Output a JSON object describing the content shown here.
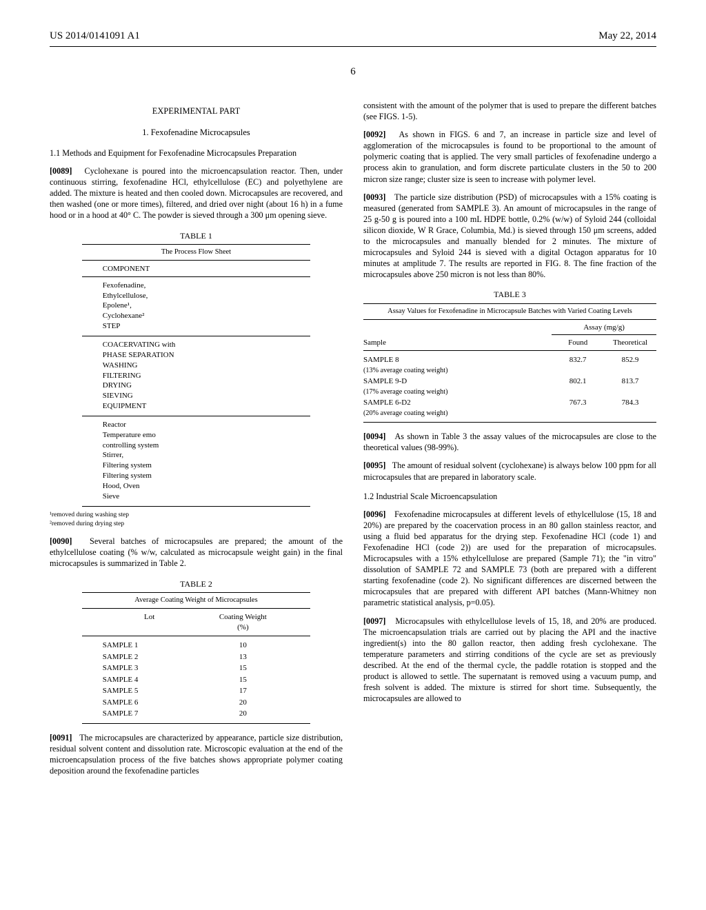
{
  "header": {
    "left": "US 2014/0141091 A1",
    "right": "May 22, 2014",
    "page_number": "6"
  },
  "left_col": {
    "experimental_heading": "EXPERIMENTAL PART",
    "sub_heading_1": "1. Fexofenadine Microcapsules",
    "sub_heading_1_1": "1.1 Methods and Equipment for Fexofenadine Microcapsules Preparation",
    "para_89_num": "[0089]",
    "para_89": "Cyclohexane is poured into the microencapsulation reactor. Then, under continuous stirring, fexofenadine HCl, ethylcellulose (EC) and polyethylene are added. The mixture is heated and then cooled down. Microcapsules are recovered, and then washed (one or more times), filtered, and dried over night (about 16 h) in a fume hood or in a hood at 40° C. The powder is sieved through a 300 μm opening sieve.",
    "table1_caption": "TABLE 1",
    "table1_title": "The Process Flow Sheet",
    "table1_component_label": "COMPONENT",
    "table1_components": "Fexofenadine,\nEthylcellulose,\nEpolene¹,\nCyclohexane²\nSTEP",
    "table1_steps": "COACERVATING with\nPHASE SEPARATION\nWASHING\nFILTERING\nDRYING\nSIEVING\nEQUIPMENT",
    "table1_equipment": "Reactor\nTemperature emo\ncontrolling system\nStirrer,\nFiltering system\nFiltering system\nHood, Oven\nSieve",
    "footnote_1": "¹removed during washing step",
    "footnote_2": "²removed during drying step",
    "para_90_num": "[0090]",
    "para_90": "Several batches of microcapsules are prepared; the amount of the ethylcellulose coating (% w/w, calculated as microcapsule weight gain) in the final microcapsules is summarized in Table 2.",
    "table2_caption": "TABLE 2",
    "table2_title": "Average Coating Weight of Microcapsules",
    "table2_h1": "Lot",
    "table2_h2": "Coating Weight\n(%)",
    "table2_rows": [
      {
        "lot": "SAMPLE 1",
        "cw": "10"
      },
      {
        "lot": "SAMPLE 2",
        "cw": "13"
      },
      {
        "lot": "SAMPLE 3",
        "cw": "15"
      },
      {
        "lot": "SAMPLE 4",
        "cw": "15"
      },
      {
        "lot": "SAMPLE 5",
        "cw": "17"
      },
      {
        "lot": "SAMPLE 6",
        "cw": "20"
      },
      {
        "lot": "SAMPLE 7",
        "cw": "20"
      }
    ],
    "para_91_num": "[0091]",
    "para_91": "The microcapsules are characterized by appearance, particle size distribution, residual solvent content and dissolution rate. Microscopic evaluation at the end of the microencapsulation process of the five batches shows appropriate polymer coating deposition around the fexofenadine particles"
  },
  "right_col": {
    "para_cont": "consistent with the amount of the polymer that is used to prepare the different batches (see FIGS. 1-5).",
    "para_92_num": "[0092]",
    "para_92": "As shown in FIGS. 6 and 7, an increase in particle size and level of agglomeration of the microcapsules is found to be proportional to the amount of polymeric coating that is applied. The very small particles of fexofenadine undergo a process akin to granulation, and form discrete particulate clusters in the 50 to 200 micron size range; cluster size is seen to increase with polymer level.",
    "para_93_num": "[0093]",
    "para_93": "The particle size distribution (PSD) of microcapsules with a 15% coating is measured (generated from SAMPLE 3). An amount of microcapsules in the range of 25 g-50 g is poured into a 100 mL HDPE bottle, 0.2% (w/w) of Syloid 244 (colloidal silicon dioxide, W R Grace, Columbia, Md.) is sieved through 150 μm screens, added to the microcapsules and manually blended for 2 minutes. The mixture of microcapsules and Syloid 244 is sieved with a digital Octagon apparatus for 10 minutes at amplitude 7. The results are reported in FIG. 8. The fine fraction of the microcapsules above 250 micron is not less than 80%.",
    "table3_caption": "TABLE 3",
    "table3_title": "Assay Values for Fexofenadine in Microcapsule Batches with Varied Coating Levels",
    "table3_assay_label": "Assay (mg/g)",
    "table3_h_sample": "Sample",
    "table3_h_found": "Found",
    "table3_h_theo": "Theoretical",
    "table3_rows": [
      {
        "sample": "SAMPLE 8",
        "sub": "(13% average coating weight)",
        "found": "832.7",
        "theo": "852.9"
      },
      {
        "sample": "SAMPLE 9-D",
        "sub": "(17% average coating weight)",
        "found": "802.1",
        "theo": "813.7"
      },
      {
        "sample": "SAMPLE 6-D2",
        "sub": "(20% average coating weight)",
        "found": "767.3",
        "theo": "784.3"
      }
    ],
    "para_94_num": "[0094]",
    "para_94": "As shown in Table 3 the assay values of the microcapsules are close to the theoretical values (98-99%).",
    "para_95_num": "[0095]",
    "para_95": "The amount of residual solvent (cyclohexane) is always below 100 ppm for all microcapsules that are prepared in laboratory scale.",
    "sub_heading_1_2": "1.2 Industrial Scale Microencapsulation",
    "para_96_num": "[0096]",
    "para_96": "Fexofenadine microcapsules at different levels of ethylcellulose (15, 18 and 20%) are prepared by the coacervation process in an 80 gallon stainless reactor, and using a fluid bed apparatus for the drying step. Fexofenadine HCl (code 1) and Fexofenadine HCl (code 2)) are used for the preparation of microcapsules. Microcapsules with a 15% ethylcellulose are prepared (Sample 71); the \"in vitro\" dissolution of SAMPLE 72 and SAMPLE 73 (both are prepared with a different starting fexofenadine (code 2). No significant differences are discerned between the microcapsules that are prepared with different API batches (Mann-Whitney non parametric statistical analysis, p=0.05).",
    "para_97_num": "[0097]",
    "para_97": "Microcapsules with ethylcellulose levels of 15, 18, and 20% are produced. The microencapsulation trials are carried out by placing the API and the inactive ingredient(s) into the 80 gallon reactor, then adding fresh cyclohexane. The temperature parameters and stirring conditions of the cycle are set as previously described. At the end of the thermal cycle, the paddle rotation is stopped and the product is allowed to settle. The supernatant is removed using a vacuum pump, and fresh solvent is added. The mixture is stirred for short time. Subsequently, the microcapsules are allowed to"
  }
}
